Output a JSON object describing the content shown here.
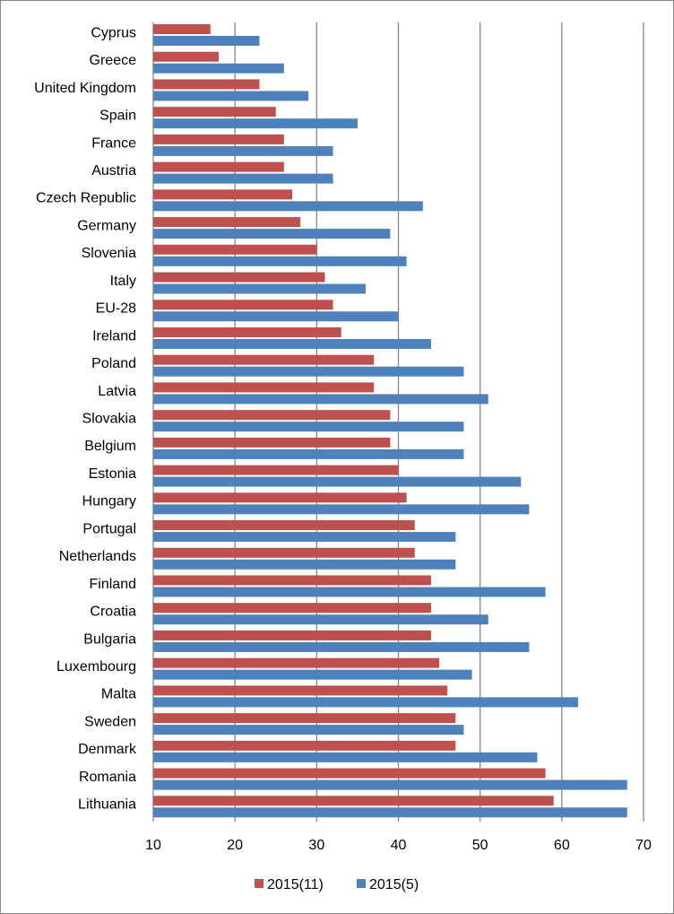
{
  "chart_data": {
    "type": "bar",
    "orientation": "horizontal",
    "title": "",
    "xlabel": "",
    "ylabel": "",
    "xlim": [
      10,
      70
    ],
    "xticks": [
      10,
      20,
      30,
      40,
      50,
      60,
      70
    ],
    "grid": "vertical",
    "legend": "bottom",
    "categories": [
      "Cyprus",
      "Greece",
      "United Kingdom",
      "Spain",
      "France",
      "Austria",
      "Czech Republic",
      "Germany",
      "Slovenia",
      "Italy",
      "EU-28",
      "Ireland",
      "Poland",
      "Latvia",
      "Slovakia",
      "Belgium",
      "Estonia",
      "Hungary",
      "Portugal",
      "Netherlands",
      "Finland",
      "Croatia",
      "Bulgaria",
      "Luxembourg",
      "Malta",
      "Sweden",
      "Denmark",
      "Romania",
      "Lithuania"
    ],
    "series": [
      {
        "name": "2015(11)",
        "color": "#C0504D",
        "values": [
          17,
          18,
          23,
          25,
          26,
          26,
          27,
          28,
          30,
          31,
          32,
          33,
          37,
          37,
          39,
          39,
          40,
          41,
          42,
          42,
          44,
          44,
          44,
          45,
          46,
          47,
          47,
          58,
          59
        ]
      },
      {
        "name": "2015(5)",
        "color": "#4F81BD",
        "values": [
          23,
          26,
          29,
          35,
          32,
          32,
          43,
          39,
          41,
          36,
          40,
          44,
          48,
          51,
          48,
          48,
          55,
          56,
          47,
          47,
          58,
          51,
          56,
          49,
          62,
          48,
          57,
          68,
          68
        ]
      }
    ]
  }
}
